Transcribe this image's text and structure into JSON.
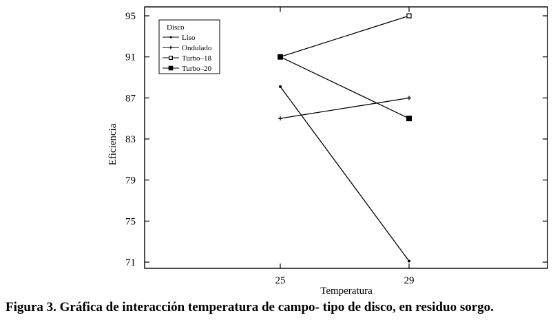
{
  "caption": "Figura 3. Gráfica de interacción temperatura de campo- tipo de disco, en residuo sorgo.",
  "chart_data": {
    "type": "line",
    "title": "",
    "xlabel": "Temperatura",
    "ylabel": "Eficiencia",
    "categories": [
      "25",
      "29"
    ],
    "ylim": [
      70,
      96
    ],
    "yticks": [
      71,
      75,
      79,
      83,
      87,
      91,
      95
    ],
    "grid": false,
    "legend": {
      "title": "Disco",
      "placement": "top-left"
    },
    "series": [
      {
        "name": "Liso",
        "values": [
          88.1,
          71.1
        ],
        "marker": "small-dot"
      },
      {
        "name": "Ondulado",
        "values": [
          85.0,
          87.0
        ],
        "marker": "plus"
      },
      {
        "name": "Turbo–18",
        "values": [
          91.0,
          95.0
        ],
        "marker": "open-square"
      },
      {
        "name": "Turbo–20",
        "values": [
          91.0,
          85.0
        ],
        "marker": "filled-square"
      }
    ],
    "colors": {
      "line": "#000000",
      "background": "#ffffff"
    }
  }
}
